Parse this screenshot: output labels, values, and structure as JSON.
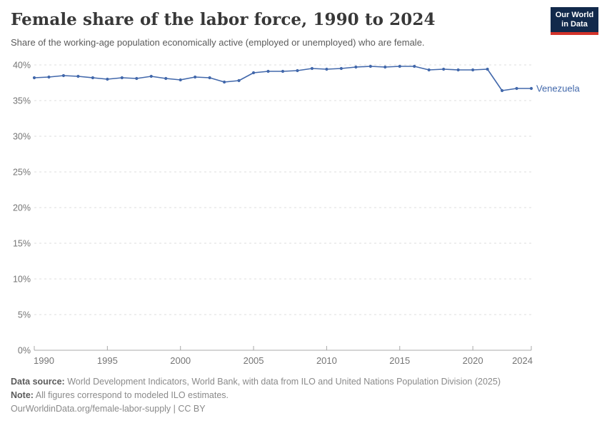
{
  "header": {
    "title": "Female share of the labor force, 1990 to 2024",
    "subtitle": "Share of the working-age population economically active (employed or unemployed) who are female.",
    "logo": {
      "line1": "Our World",
      "line2": "in Data"
    }
  },
  "chart_data": {
    "type": "line",
    "title": "Female share of the labor force, 1990 to 2024",
    "xlabel": "",
    "ylabel": "",
    "xlim": [
      1990,
      2024
    ],
    "ylim": [
      0,
      40
    ],
    "xticks": [
      1990,
      1995,
      2000,
      2005,
      2010,
      2015,
      2020,
      2024
    ],
    "yticks": [
      0,
      5,
      10,
      15,
      20,
      25,
      30,
      35,
      40
    ],
    "ytick_suffix": "%",
    "grid": "horizontal-dashed",
    "legend_position": "end-of-line-label",
    "x": [
      1990,
      1991,
      1992,
      1993,
      1994,
      1995,
      1996,
      1997,
      1998,
      1999,
      2000,
      2001,
      2002,
      2003,
      2004,
      2005,
      2006,
      2007,
      2008,
      2009,
      2010,
      2011,
      2012,
      2013,
      2014,
      2015,
      2016,
      2017,
      2018,
      2019,
      2020,
      2021,
      2022,
      2023,
      2024
    ],
    "series": [
      {
        "name": "Venezuela",
        "color": "#4268ab",
        "values": [
          38.2,
          38.3,
          38.5,
          38.4,
          38.2,
          38.0,
          38.2,
          38.1,
          38.4,
          38.1,
          37.9,
          38.3,
          38.2,
          37.6,
          37.8,
          38.9,
          39.1,
          39.1,
          39.2,
          39.5,
          39.4,
          39.5,
          39.7,
          39.8,
          39.7,
          39.8,
          39.8,
          39.3,
          39.4,
          39.3,
          39.3,
          39.4,
          36.4,
          36.7,
          36.7
        ]
      }
    ]
  },
  "colors": {
    "line": "#4268ab",
    "grid": "#dcdcdc",
    "axis": "#a8a8a8",
    "tick_label": "#757575",
    "logo_bg": "#12294b",
    "logo_accent": "#d3332a"
  },
  "footer": {
    "datasource_label": "Data source:",
    "datasource_text": " World Development Indicators, World Bank, with data from ILO and United Nations Population Division (2025)",
    "note_label": "Note:",
    "note_text": " All figures correspond to modeled ILO estimates.",
    "url": "OurWorldinData.org/female-labor-supply",
    "license_sep": " | ",
    "license": "CC BY"
  }
}
